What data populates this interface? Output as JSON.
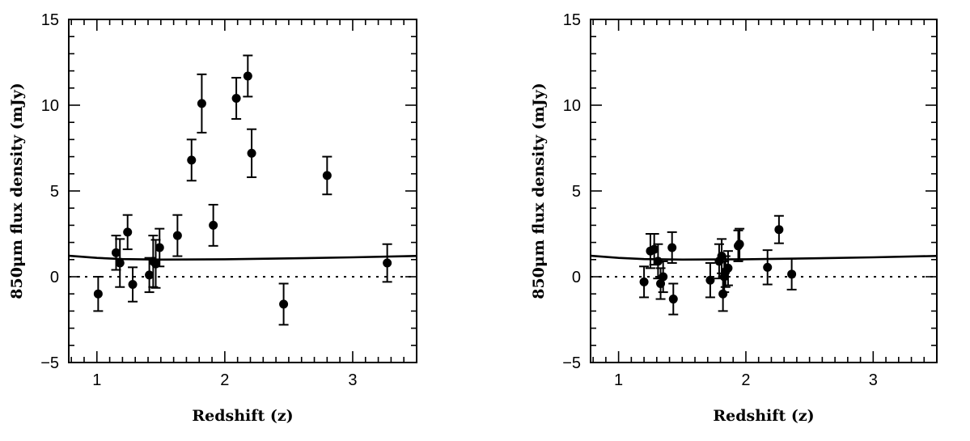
{
  "chart_data": [
    {
      "type": "scatter",
      "xlabel": "Redshift (z)",
      "ylabel": "850μm flux density (mJy)",
      "xlim": [
        0.78,
        3.5
      ],
      "ylim": [
        -5,
        15
      ],
      "x_major_ticks": [
        1,
        2,
        3
      ],
      "y_major_ticks": [
        -5,
        0,
        5,
        10,
        15
      ],
      "x_tick_labels": [
        "1",
        "2",
        "3"
      ],
      "y_tick_labels": [
        "−5",
        "0",
        "5",
        "10",
        "15"
      ],
      "reference_line": {
        "y": 0,
        "style": "dotted"
      },
      "model_curve": {
        "x": [
          0.78,
          1.0,
          1.2,
          1.5,
          2.0,
          2.5,
          3.0,
          3.5
        ],
        "y": [
          1.22,
          1.1,
          1.03,
          1.0,
          1.02,
          1.07,
          1.13,
          1.21
        ]
      },
      "points": [
        {
          "x": 1.01,
          "y": -1.0,
          "err": 1.0
        },
        {
          "x": 1.15,
          "y": 1.4,
          "err": 1.0
        },
        {
          "x": 1.18,
          "y": 0.8,
          "err": 1.4
        },
        {
          "x": 1.24,
          "y": 2.6,
          "err": 1.0
        },
        {
          "x": 1.28,
          "y": -0.45,
          "err": 1.0
        },
        {
          "x": 1.41,
          "y": 0.1,
          "err": 1.0
        },
        {
          "x": 1.44,
          "y": 0.9,
          "err": 1.5
        },
        {
          "x": 1.46,
          "y": 0.75,
          "err": 1.4
        },
        {
          "x": 1.49,
          "y": 1.7,
          "err": 1.1
        },
        {
          "x": 1.63,
          "y": 2.4,
          "err": 1.2
        },
        {
          "x": 1.74,
          "y": 6.8,
          "err": 1.2
        },
        {
          "x": 1.82,
          "y": 10.1,
          "err": 1.7
        },
        {
          "x": 1.91,
          "y": 3.0,
          "err": 1.2
        },
        {
          "x": 2.09,
          "y": 10.4,
          "err": 1.2
        },
        {
          "x": 2.18,
          "y": 11.7,
          "err": 1.2
        },
        {
          "x": 2.21,
          "y": 7.2,
          "err": 1.4
        },
        {
          "x": 2.46,
          "y": -1.6,
          "err": 1.2
        },
        {
          "x": 2.8,
          "y": 5.9,
          "err": 1.1
        },
        {
          "x": 3.27,
          "y": 0.8,
          "err": 1.1
        }
      ]
    },
    {
      "type": "scatter",
      "xlabel": "Redshift (z)",
      "ylabel": "850μm flux density (mJy)",
      "xlim": [
        0.78,
        3.5
      ],
      "ylim": [
        -5,
        15
      ],
      "x_major_ticks": [
        1,
        2,
        3
      ],
      "y_major_ticks": [
        -5,
        0,
        5,
        10,
        15
      ],
      "x_tick_labels": [
        "1",
        "2",
        "3"
      ],
      "y_tick_labels": [
        "−5",
        "0",
        "5",
        "10",
        "15"
      ],
      "reference_line": {
        "y": 0,
        "style": "dotted"
      },
      "model_curve": {
        "x": [
          0.78,
          1.0,
          1.2,
          1.5,
          2.0,
          2.5,
          3.0,
          3.5
        ],
        "y": [
          1.22,
          1.1,
          1.03,
          1.0,
          1.02,
          1.07,
          1.13,
          1.21
        ]
      },
      "points": [
        {
          "x": 1.2,
          "y": -0.3,
          "err": 0.9
        },
        {
          "x": 1.25,
          "y": 1.5,
          "err": 1.0
        },
        {
          "x": 1.28,
          "y": 1.6,
          "err": 0.9
        },
        {
          "x": 1.31,
          "y": 0.9,
          "err": 1.0
        },
        {
          "x": 1.33,
          "y": -0.4,
          "err": 0.9
        },
        {
          "x": 1.35,
          "y": 0.0,
          "err": 0.9
        },
        {
          "x": 1.42,
          "y": 1.7,
          "err": 0.9
        },
        {
          "x": 1.43,
          "y": -1.3,
          "err": 0.9
        },
        {
          "x": 1.72,
          "y": -0.2,
          "err": 1.0
        },
        {
          "x": 1.79,
          "y": 0.9,
          "err": 1.0
        },
        {
          "x": 1.81,
          "y": 1.2,
          "err": 1.0
        },
        {
          "x": 1.82,
          "y": -1.0,
          "err": 1.0
        },
        {
          "x": 1.83,
          "y": 0.0,
          "err": 0.9
        },
        {
          "x": 1.84,
          "y": 0.3,
          "err": 0.9
        },
        {
          "x": 1.86,
          "y": 0.5,
          "err": 1.0
        },
        {
          "x": 1.94,
          "y": 1.8,
          "err": 0.9
        },
        {
          "x": 1.95,
          "y": 1.9,
          "err": 0.9
        },
        {
          "x": 2.17,
          "y": 0.55,
          "err": 1.0
        },
        {
          "x": 2.26,
          "y": 2.75,
          "err": 0.8
        },
        {
          "x": 2.36,
          "y": 0.15,
          "err": 0.9
        }
      ]
    }
  ]
}
